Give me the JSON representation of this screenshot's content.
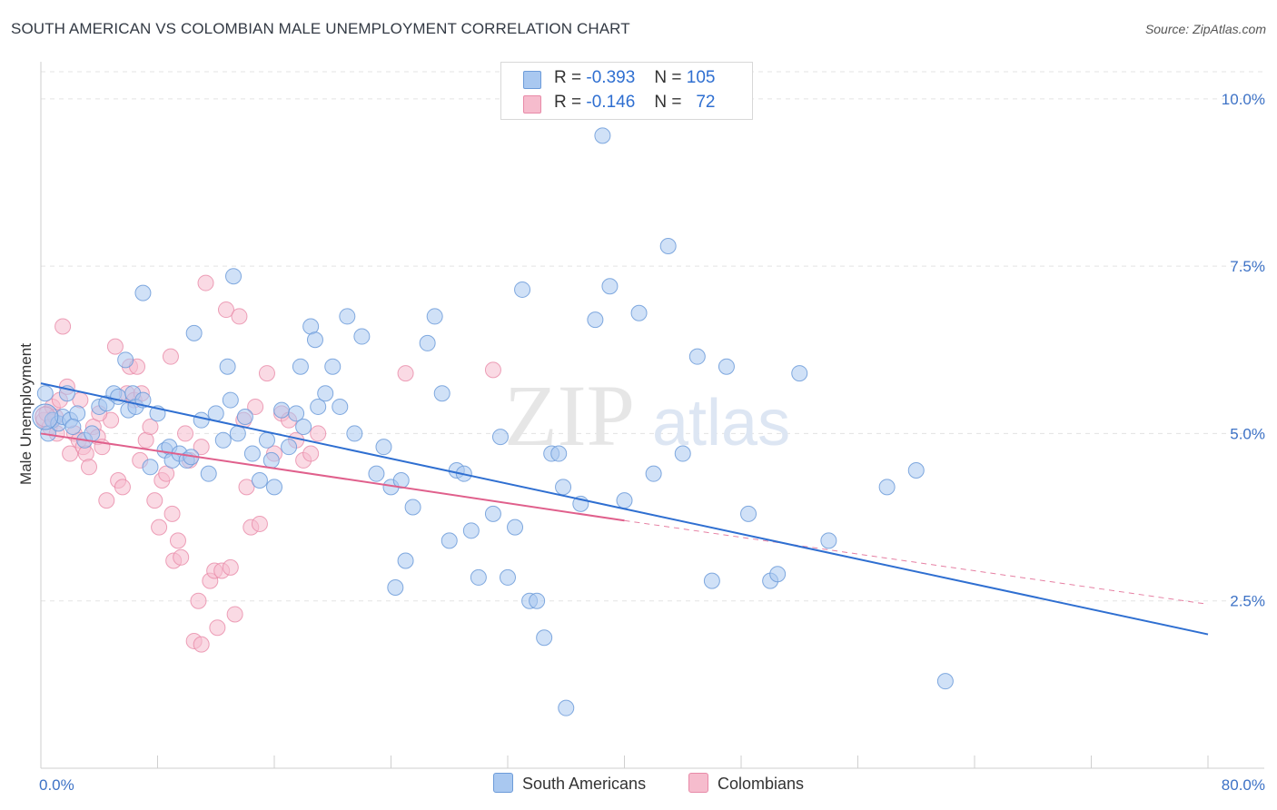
{
  "title": "SOUTH AMERICAN VS COLOMBIAN MALE UNEMPLOYMENT CORRELATION CHART",
  "source": "Source: ZipAtlas.com",
  "watermark": {
    "zip": "ZIP",
    "atlas": "atlas"
  },
  "colors": {
    "blue_fill": "#a9c8f0",
    "blue_stroke": "#6c9bd9",
    "blue_line": "#2f6fd1",
    "pink_fill": "#f6bccd",
    "pink_stroke": "#e88aa8",
    "pink_line": "#e0608c",
    "axis_text": "#3d72c6",
    "grid": "#e3e3e3"
  },
  "legend": {
    "rows": [
      {
        "r_label": "R =",
        "r_value": "-0.393",
        "n_label": "N =",
        "n_value": "105"
      },
      {
        "r_label": "R =",
        "r_value": "-0.146",
        "n_label": "N =",
        "n_value": "72"
      }
    ]
  },
  "bottom_legend": {
    "blue": "South Americans",
    "pink": "Colombians"
  },
  "chart_data": {
    "type": "scatter",
    "title": "SOUTH AMERICAN VS COLOMBIAN MALE UNEMPLOYMENT CORRELATION CHART",
    "xlabel": "",
    "ylabel": "Male Unemployment",
    "xlim": [
      0,
      80
    ],
    "ylim": [
      0,
      10.5
    ],
    "x_tick_labels": [
      "0.0%",
      "80.0%"
    ],
    "y_ticks": [
      2.5,
      5.0,
      7.5,
      10.0
    ],
    "y_tick_labels": [
      "2.5%",
      "5.0%",
      "7.5%",
      "10.0%"
    ],
    "series": [
      {
        "name": "South Americans",
        "r": -0.393,
        "n": 105,
        "trend": {
          "x": [
            0,
            80
          ],
          "y": [
            5.75,
            2.0
          ]
        },
        "points": [
          [
            0.3,
            5.6
          ],
          [
            0.5,
            5.0
          ],
          [
            0.8,
            5.2
          ],
          [
            1.2,
            5.15
          ],
          [
            1.5,
            5.25
          ],
          [
            1.8,
            5.6
          ],
          [
            2.0,
            5.2
          ],
          [
            2.5,
            5.3
          ],
          [
            3.0,
            4.9
          ],
          [
            3.5,
            5.0
          ],
          [
            4.0,
            5.4
          ],
          [
            4.5,
            5.45
          ],
          [
            5.0,
            5.6
          ],
          [
            5.3,
            5.55
          ],
          [
            6.0,
            5.35
          ],
          [
            6.3,
            5.6
          ],
          [
            6.5,
            5.4
          ],
          [
            7.0,
            5.5
          ],
          [
            7.5,
            4.5
          ],
          [
            8.0,
            5.3
          ],
          [
            8.5,
            4.75
          ],
          [
            8.8,
            4.8
          ],
          [
            9.0,
            4.6
          ],
          [
            9.5,
            4.7
          ],
          [
            10.0,
            4.6
          ],
          [
            10.3,
            4.65
          ],
          [
            11.0,
            5.2
          ],
          [
            11.5,
            4.4
          ],
          [
            12.0,
            5.3
          ],
          [
            12.5,
            4.9
          ],
          [
            13.0,
            5.5
          ],
          [
            13.5,
            5.0
          ],
          [
            14.0,
            5.25
          ],
          [
            14.5,
            4.7
          ],
          [
            15.0,
            4.3
          ],
          [
            15.5,
            4.9
          ],
          [
            15.8,
            4.6
          ],
          [
            16.0,
            4.2
          ],
          [
            16.5,
            5.35
          ],
          [
            17.0,
            4.8
          ],
          [
            17.5,
            5.3
          ],
          [
            18.0,
            5.1
          ],
          [
            18.5,
            6.6
          ],
          [
            18.8,
            6.4
          ],
          [
            19.0,
            5.4
          ],
          [
            19.5,
            5.6
          ],
          [
            20.0,
            6.0
          ],
          [
            20.5,
            5.4
          ],
          [
            21.0,
            6.75
          ],
          [
            21.5,
            5.0
          ],
          [
            22.0,
            6.45
          ],
          [
            23.0,
            4.4
          ],
          [
            23.5,
            4.8
          ],
          [
            24.0,
            4.2
          ],
          [
            24.3,
            2.7
          ],
          [
            24.7,
            4.3
          ],
          [
            25.0,
            3.1
          ],
          [
            25.5,
            3.9
          ],
          [
            26.5,
            6.35
          ],
          [
            27.0,
            6.75
          ],
          [
            27.5,
            5.6
          ],
          [
            28.0,
            3.4
          ],
          [
            28.5,
            4.45
          ],
          [
            29.0,
            4.4
          ],
          [
            29.5,
            3.55
          ],
          [
            30.0,
            2.85
          ],
          [
            31.0,
            3.8
          ],
          [
            31.5,
            4.95
          ],
          [
            32.0,
            2.85
          ],
          [
            32.5,
            3.6
          ],
          [
            33.0,
            7.15
          ],
          [
            33.5,
            2.5
          ],
          [
            34.0,
            2.5
          ],
          [
            34.5,
            1.95
          ],
          [
            35.0,
            4.7
          ],
          [
            35.5,
            4.7
          ],
          [
            35.8,
            4.2
          ],
          [
            36.0,
            0.9
          ],
          [
            37.0,
            3.95
          ],
          [
            38.0,
            6.7
          ],
          [
            38.5,
            9.45
          ],
          [
            39.0,
            7.2
          ],
          [
            40.0,
            4.0
          ],
          [
            41.0,
            6.8
          ],
          [
            42.0,
            4.4
          ],
          [
            43.0,
            7.8
          ],
          [
            44.0,
            4.7
          ],
          [
            45.0,
            6.15
          ],
          [
            46.0,
            2.8
          ],
          [
            47.0,
            6.0
          ],
          [
            48.5,
            3.8
          ],
          [
            50.0,
            2.8
          ],
          [
            50.5,
            2.9
          ],
          [
            52.0,
            5.9
          ],
          [
            54.0,
            3.4
          ],
          [
            58.0,
            4.2
          ],
          [
            60.0,
            4.45
          ],
          [
            62.0,
            1.3
          ],
          [
            7.0,
            7.1
          ],
          [
            10.5,
            6.5
          ],
          [
            12.8,
            6.0
          ],
          [
            13.2,
            7.35
          ],
          [
            17.8,
            6.0
          ],
          [
            2.2,
            5.1
          ],
          [
            5.8,
            6.1
          ]
        ]
      },
      {
        "name": "Colombians",
        "r": -0.146,
        "n": 72,
        "trend": {
          "x": [
            0,
            40
          ],
          "y": [
            5.0,
            3.7
          ]
        },
        "trend_extension": {
          "x": [
            40,
            80
          ],
          "y": [
            3.7,
            2.45
          ]
        },
        "points": [
          [
            0.2,
            5.2
          ],
          [
            0.4,
            5.3
          ],
          [
            0.6,
            5.1
          ],
          [
            0.8,
            5.4
          ],
          [
            1.0,
            5.25
          ],
          [
            1.3,
            5.5
          ],
          [
            1.5,
            6.6
          ],
          [
            1.8,
            5.7
          ],
          [
            2.0,
            4.7
          ],
          [
            2.3,
            5.0
          ],
          [
            2.6,
            4.9
          ],
          [
            2.9,
            4.8
          ],
          [
            3.1,
            4.7
          ],
          [
            3.3,
            4.5
          ],
          [
            3.6,
            5.1
          ],
          [
            3.9,
            4.95
          ],
          [
            4.2,
            4.8
          ],
          [
            4.5,
            4.0
          ],
          [
            4.8,
            5.2
          ],
          [
            5.1,
            6.3
          ],
          [
            5.3,
            4.3
          ],
          [
            5.6,
            4.2
          ],
          [
            5.9,
            5.6
          ],
          [
            6.1,
            6.0
          ],
          [
            6.4,
            5.5
          ],
          [
            6.6,
            6.0
          ],
          [
            6.9,
            5.6
          ],
          [
            7.2,
            4.9
          ],
          [
            7.5,
            5.1
          ],
          [
            7.8,
            4.0
          ],
          [
            8.1,
            3.6
          ],
          [
            8.3,
            4.3
          ],
          [
            8.6,
            4.4
          ],
          [
            8.9,
            6.15
          ],
          [
            9.1,
            3.1
          ],
          [
            9.4,
            3.4
          ],
          [
            9.6,
            3.15
          ],
          [
            9.9,
            5.0
          ],
          [
            10.2,
            4.6
          ],
          [
            10.5,
            1.9
          ],
          [
            10.8,
            2.5
          ],
          [
            11.0,
            1.85
          ],
          [
            11.3,
            7.25
          ],
          [
            11.6,
            2.8
          ],
          [
            11.9,
            2.95
          ],
          [
            12.1,
            2.1
          ],
          [
            12.4,
            2.95
          ],
          [
            12.7,
            6.85
          ],
          [
            13.0,
            3.0
          ],
          [
            13.3,
            2.3
          ],
          [
            13.6,
            6.75
          ],
          [
            13.9,
            5.2
          ],
          [
            14.1,
            4.2
          ],
          [
            14.4,
            3.6
          ],
          [
            14.7,
            5.4
          ],
          [
            15.0,
            3.65
          ],
          [
            15.5,
            5.9
          ],
          [
            16.0,
            4.7
          ],
          [
            16.5,
            5.3
          ],
          [
            17.0,
            5.2
          ],
          [
            17.5,
            4.9
          ],
          [
            18.0,
            4.6
          ],
          [
            18.5,
            4.7
          ],
          [
            19.0,
            5.0
          ],
          [
            25.0,
            5.9
          ],
          [
            31.0,
            5.95
          ],
          [
            1.1,
            5.0
          ],
          [
            2.7,
            5.5
          ],
          [
            4.0,
            5.3
          ],
          [
            6.8,
            4.6
          ],
          [
            9.0,
            3.8
          ],
          [
            11.0,
            4.8
          ]
        ]
      }
    ]
  }
}
